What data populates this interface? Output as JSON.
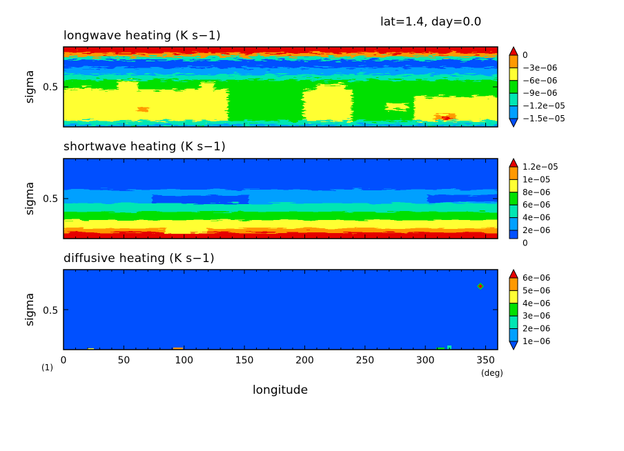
{
  "header": "lat=1.4, day=0.0",
  "figure_label": "(1)",
  "x_unit": "(deg)",
  "x_axis_label": "longitude",
  "chart_data": [
    {
      "type": "heatmap",
      "title": "longwave heating (K s−1)",
      "ylabel": "sigma",
      "xlabel": "longitude",
      "xlim": [
        0,
        360
      ],
      "ylim": [
        0,
        1
      ],
      "y_ticks": [
        0.5
      ],
      "x_ticks": [
        0,
        50,
        100,
        150,
        200,
        250,
        300,
        350
      ],
      "colorbar": {
        "labels": [
          "0",
          "−3e−06",
          "−6e−06",
          "−9e−06",
          "−1.2e−05",
          "−1.5e−05"
        ],
        "colors": [
          "#e60000",
          "#ff9900",
          "#ffff33",
          "#00e000",
          "#00e6b3",
          "#00a0ff",
          "#0050ff"
        ]
      }
    },
    {
      "type": "heatmap",
      "title": "shortwave heating (K s−1)",
      "ylabel": "sigma",
      "xlabel": "longitude",
      "xlim": [
        0,
        360
      ],
      "ylim": [
        0,
        1
      ],
      "y_ticks": [
        0.5
      ],
      "x_ticks": [
        0,
        50,
        100,
        150,
        200,
        250,
        300,
        350
      ],
      "colorbar": {
        "labels": [
          "1.2e−05",
          "1e−05",
          "8e−06",
          "6e−06",
          "4e−06",
          "2e−06",
          "0"
        ],
        "colors": [
          "#e60000",
          "#ff9900",
          "#ffff33",
          "#00e000",
          "#00e6b3",
          "#00a0ff",
          "#0050ff"
        ]
      }
    },
    {
      "type": "heatmap",
      "title": "diffusive heating (K s−1)",
      "ylabel": "sigma",
      "xlabel": "longitude",
      "xlim": [
        0,
        360
      ],
      "ylim": [
        0,
        1
      ],
      "y_ticks": [
        0.5
      ],
      "x_ticks": [
        0,
        50,
        100,
        150,
        200,
        250,
        300,
        350
      ],
      "colorbar": {
        "labels": [
          "6e−06",
          "5e−06",
          "4e−06",
          "3e−06",
          "2e−06",
          "1e−06"
        ],
        "colors": [
          "#e60000",
          "#ff9900",
          "#ffff33",
          "#00e000",
          "#00e6b3",
          "#00a0ff",
          "#0050ff"
        ]
      }
    }
  ]
}
